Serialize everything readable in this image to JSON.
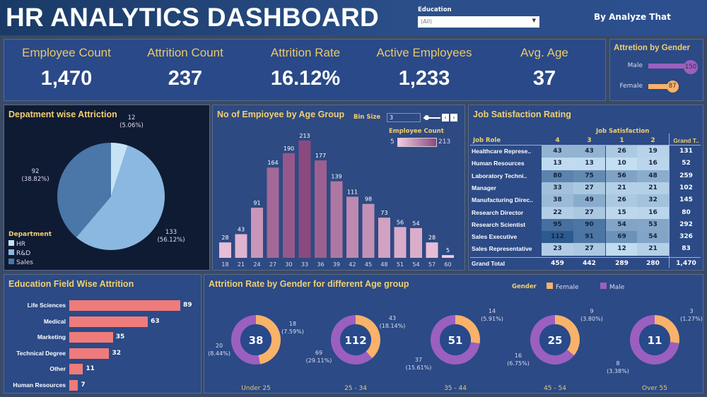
{
  "header": {
    "title": "HR ANALYTICS DASHBOARD",
    "brand": "By Analyze That",
    "filter_label": "Education",
    "filter_value": "(All)"
  },
  "kpis": [
    {
      "label": "Employee Count",
      "value": "1,470"
    },
    {
      "label": "Attrition Count",
      "value": "237"
    },
    {
      "label": "Attrition Rate",
      "value": "16.12%"
    },
    {
      "label": "Active Employees",
      "value": "1,233"
    },
    {
      "label": "Avg. Age",
      "value": "37"
    }
  ],
  "gender_attrition": {
    "title": "Attretion by Gender",
    "items": [
      {
        "label": "Male",
        "value": 150,
        "color": "#9b5fc0"
      },
      {
        "label": "Female",
        "value": 87,
        "color": "#f9b26a"
      }
    ]
  },
  "department": {
    "title": "Depatment wise Attriction",
    "legend_title": "Department",
    "chart_data": {
      "type": "pie",
      "slices": [
        {
          "name": "HR",
          "value": 12,
          "pct": "(5.06%)",
          "color": "#c6e2f5"
        },
        {
          "name": "R&D",
          "value": 133,
          "pct": "(56.12%)",
          "color": "#8ab8e0"
        },
        {
          "name": "Sales",
          "value": 92,
          "pct": "(38.82%)",
          "color": "#4a76a8"
        }
      ]
    }
  },
  "age_group": {
    "title": "No of Empioyee by Age Group",
    "bin_label": "Bin Size",
    "bin_value": "3",
    "legend_title": "Employee Count",
    "legend_min": "5",
    "legend_max": "213",
    "chart_data": {
      "type": "bar",
      "categories": [
        "18",
        "21",
        "24",
        "27",
        "30",
        "33",
        "36",
        "39",
        "42",
        "45",
        "48",
        "51",
        "54",
        "57",
        "60"
      ],
      "values": [
        28,
        43,
        91,
        164,
        190,
        213,
        177,
        139,
        111,
        98,
        73,
        56,
        54,
        28,
        5
      ],
      "color_range": [
        "#f3cbe3",
        "#8a4a7f"
      ]
    }
  },
  "job_satisfaction": {
    "title": "Job Satisfaction Rating",
    "group_header": "Job Satisfaction",
    "role_header": "Job Role",
    "columns": [
      "4",
      "3",
      "1",
      "2"
    ],
    "total_header": "Grand T..",
    "rows": [
      {
        "role": "Healthcare Represe..",
        "values": [
          43,
          43,
          26,
          19
        ],
        "total": "131"
      },
      {
        "role": "Human Resources",
        "values": [
          13,
          13,
          10,
          16
        ],
        "total": "52"
      },
      {
        "role": "Laboratory Techni..",
        "values": [
          80,
          75,
          56,
          48
        ],
        "total": "259"
      },
      {
        "role": "Manager",
        "values": [
          33,
          27,
          21,
          21
        ],
        "total": "102"
      },
      {
        "role": "Manufacturing Direc..",
        "values": [
          38,
          49,
          26,
          32
        ],
        "total": "145"
      },
      {
        "role": "Research Director",
        "values": [
          22,
          27,
          15,
          16
        ],
        "total": "80"
      },
      {
        "role": "Research Scientist",
        "values": [
          95,
          90,
          54,
          53
        ],
        "total": "292"
      },
      {
        "role": "Sales Executive",
        "values": [
          112,
          91,
          69,
          54
        ],
        "total": "326"
      },
      {
        "role": "Sales Representative",
        "values": [
          23,
          27,
          12,
          21
        ],
        "total": "83"
      }
    ],
    "grand_total": {
      "label": "Grand Total",
      "values": [
        "459",
        "442",
        "289",
        "280"
      ],
      "total": "1,470"
    }
  },
  "education_field": {
    "title": "Education Field Wise Attrition",
    "chart_data": {
      "type": "bar",
      "orientation": "horizontal",
      "categories": [
        "Life Sciences",
        "Medical",
        "Marketing",
        "Technical Degree",
        "Other",
        "Human Resources"
      ],
      "values": [
        89,
        63,
        35,
        32,
        11,
        7
      ],
      "color": "#ef7b7b"
    }
  },
  "age_gender": {
    "title": "Attrition Rate by Gender for different Age group",
    "legend_title": "Gender",
    "legend": [
      {
        "name": "Female",
        "color": "#f9b26a"
      },
      {
        "name": "Male",
        "color": "#9b5fc0"
      }
    ],
    "chart_data": {
      "type": "pie",
      "groups": [
        {
          "label": "Under 25",
          "total": "38",
          "female": 18,
          "female_pct": "(7.59%)",
          "male": 20,
          "male_pct": "(8.44%)"
        },
        {
          "label": "25 - 34",
          "total": "112",
          "female": 43,
          "female_pct": "(18.14%)",
          "male": 69,
          "male_pct": "(29.11%)"
        },
        {
          "label": "35 - 44",
          "total": "51",
          "female": 14,
          "female_pct": "(5.91%)",
          "male": 37,
          "male_pct": "(15.61%)"
        },
        {
          "label": "45 - 54",
          "total": "25",
          "female": 9,
          "female_pct": "(3.80%)",
          "male": 16,
          "male_pct": "(6.75%)"
        },
        {
          "label": "Over 55",
          "total": "11",
          "female": 3,
          "female_pct": "(1.27%)",
          "male": 8,
          "male_pct": "(3.38%)"
        }
      ]
    }
  }
}
